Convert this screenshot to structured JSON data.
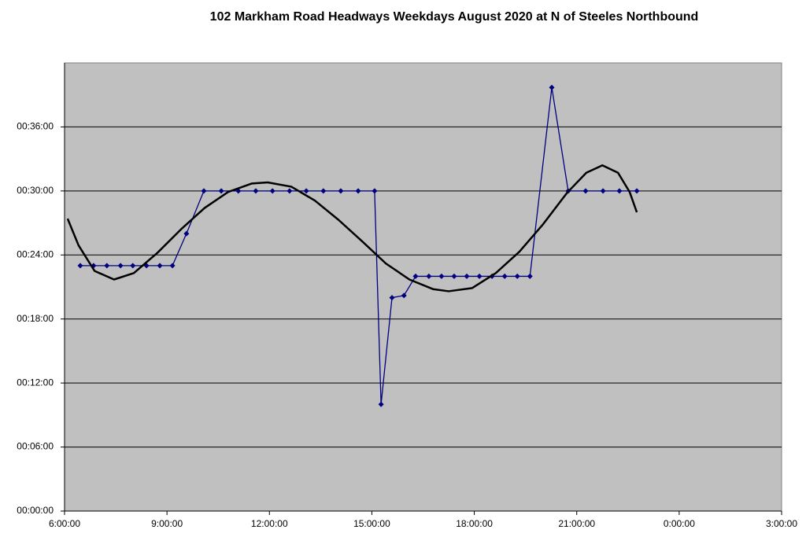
{
  "chart_data": {
    "type": "line",
    "title": "102 Markham Road Headways Weekdays August 2020 at N of Steeles Northbound",
    "xlim": [
      6,
      27
    ],
    "xticks": [
      {
        "value": 6,
        "label": "6:00:00"
      },
      {
        "value": 9,
        "label": "9:00:00"
      },
      {
        "value": 12,
        "label": "12:00:00"
      },
      {
        "value": 15,
        "label": "15:00:00"
      },
      {
        "value": 18,
        "label": "18:00:00"
      },
      {
        "value": 21,
        "label": "21:00:00"
      },
      {
        "value": 24,
        "label": "0:00:00"
      },
      {
        "value": 27,
        "label": "3:00:00"
      }
    ],
    "ylim": [
      0,
      42
    ],
    "yticks": [
      {
        "value": 0,
        "label": "00:00:00"
      },
      {
        "value": 6,
        "label": "00:06:00"
      },
      {
        "value": 12,
        "label": "00:12:00"
      },
      {
        "value": 18,
        "label": "00:18:00"
      },
      {
        "value": 24,
        "label": "00:24:00"
      },
      {
        "value": 30,
        "label": "00:30:00"
      },
      {
        "value": 36,
        "label": "00:36:00"
      }
    ],
    "grid": true,
    "series": [
      {
        "color": "#000080",
        "markers": true,
        "x": [
          6.46,
          6.85,
          7.24,
          7.64,
          8.0,
          8.4,
          8.79,
          9.16,
          9.57,
          10.08,
          10.59,
          11.09,
          11.6,
          12.09,
          12.59,
          13.08,
          13.58,
          14.09,
          14.6,
          15.08,
          15.27,
          15.59,
          15.94,
          16.28,
          16.67,
          17.04,
          17.41,
          17.78,
          18.15,
          18.52,
          18.89,
          19.26,
          19.63,
          20.27,
          20.75,
          21.26,
          21.77,
          22.25,
          22.76
        ],
        "values": [
          23,
          23,
          23,
          23,
          23,
          23,
          23,
          23,
          26,
          30,
          30,
          30,
          30,
          30,
          30,
          30,
          30,
          30,
          30,
          30,
          10,
          20,
          20.2,
          22,
          22,
          22,
          22,
          22,
          22,
          22,
          22,
          22,
          22,
          39.7,
          30,
          30,
          30,
          30,
          30
        ]
      },
      {
        "color": "#000000",
        "markers": false,
        "x": [
          6.09,
          6.41,
          6.88,
          7.45,
          8.03,
          8.72,
          9.41,
          10.1,
          10.79,
          11.49,
          11.95,
          12.64,
          13.33,
          14.02,
          14.71,
          15.41,
          16.1,
          16.79,
          17.25,
          17.94,
          18.63,
          19.32,
          20.02,
          20.71,
          21.28,
          21.75,
          22.21,
          22.55,
          22.76
        ],
        "values": [
          27.4,
          24.9,
          22.5,
          21.7,
          22.3,
          24.2,
          26.4,
          28.4,
          29.9,
          30.7,
          30.8,
          30.4,
          29.1,
          27.3,
          25.3,
          23.2,
          21.7,
          20.8,
          20.6,
          20.9,
          22.3,
          24.3,
          26.9,
          29.8,
          31.7,
          32.4,
          31.7,
          29.9,
          28.0
        ]
      }
    ]
  }
}
